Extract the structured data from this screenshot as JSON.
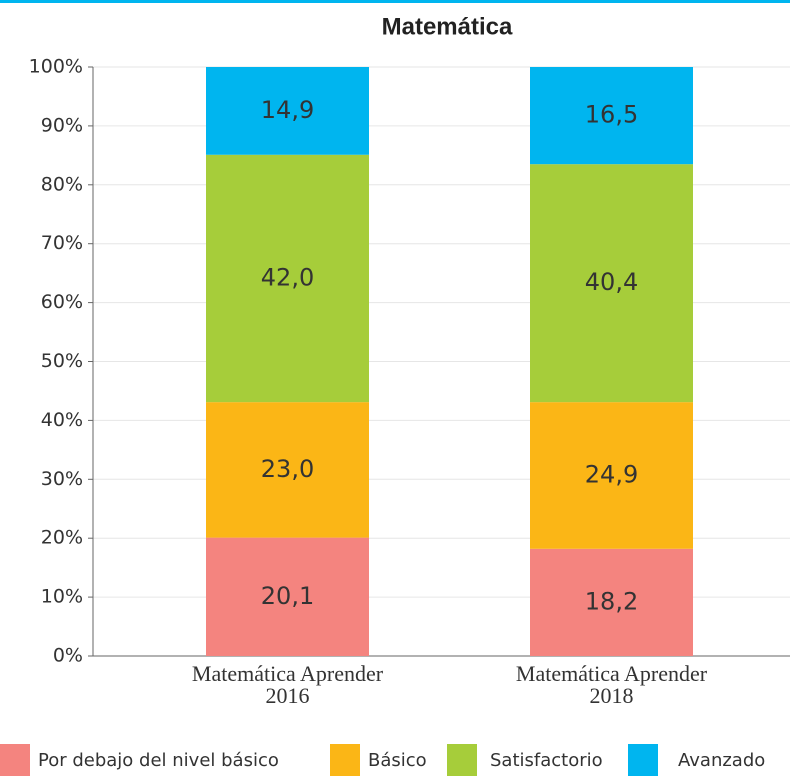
{
  "chart_data": {
    "type": "stacked_bar",
    "title": "Matemática",
    "categories": [
      "Matemática Aprender 2016",
      "Matemática Aprender 2018"
    ],
    "series": [
      {
        "name": "Por debajo del nivel básico",
        "color": "#f4847f",
        "values": [
          20.1,
          18.2
        ],
        "value_labels": [
          "20,1",
          "18,2"
        ]
      },
      {
        "name": "Básico",
        "color": "#fbb616",
        "values": [
          23.0,
          24.9
        ],
        "value_labels": [
          "23,0",
          "24,9"
        ]
      },
      {
        "name": "Satisfactorio",
        "color": "#a6cd3a",
        "values": [
          42.0,
          40.4
        ],
        "value_labels": [
          "42,0",
          "40,4"
        ]
      },
      {
        "name": "Avanzado",
        "color": "#00b5ef",
        "values": [
          14.9,
          16.5
        ],
        "value_labels": [
          "14,9",
          "16,5"
        ]
      }
    ],
    "ylim": [
      0,
      100
    ],
    "yticks": [
      {
        "value": 0,
        "label": "0%"
      },
      {
        "value": 10,
        "label": "10%"
      },
      {
        "value": 20,
        "label": "20%"
      },
      {
        "value": 30,
        "label": "30%"
      },
      {
        "value": 40,
        "label": "40%"
      },
      {
        "value": 50,
        "label": "50%"
      },
      {
        "value": 60,
        "label": "60%"
      },
      {
        "value": 70,
        "label": "70%"
      },
      {
        "value": 80,
        "label": "80%"
      },
      {
        "value": 90,
        "label": "90%"
      },
      {
        "value": 100,
        "label": "100%"
      }
    ],
    "grid": true,
    "legend": "bottom"
  }
}
